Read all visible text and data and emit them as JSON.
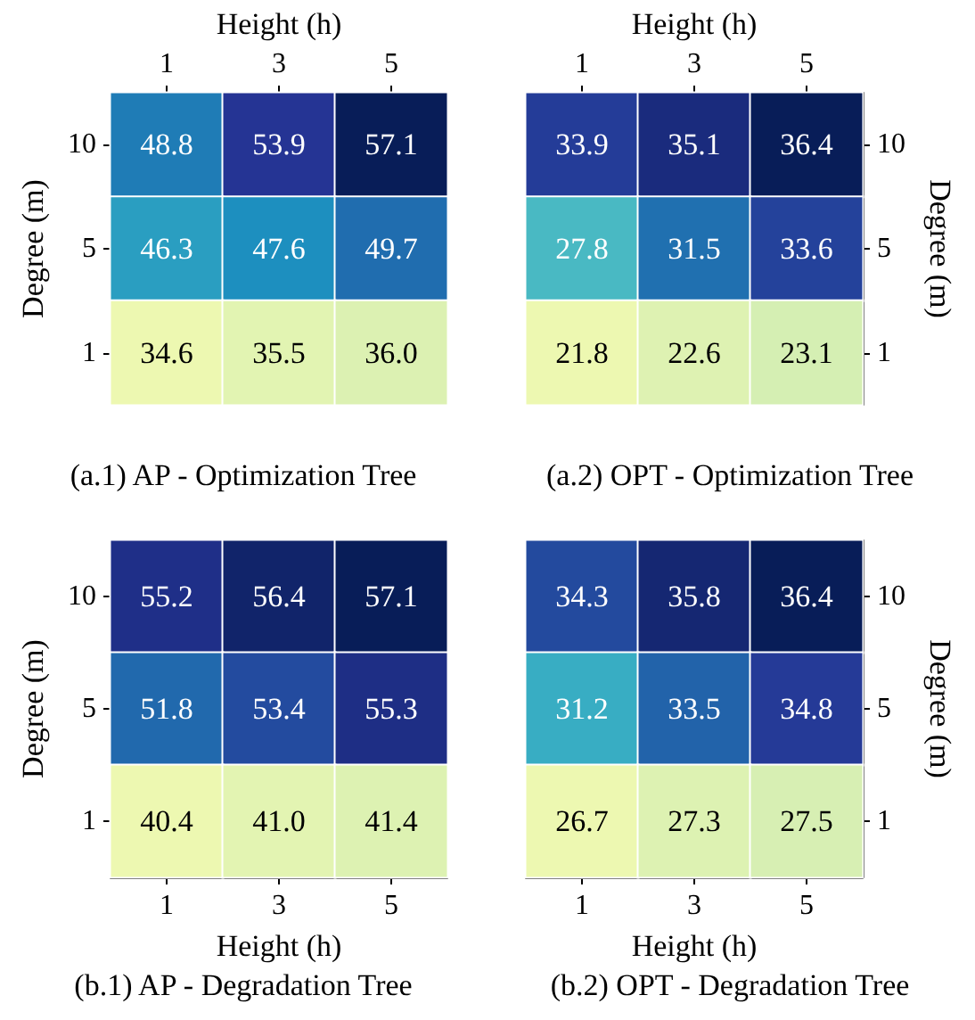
{
  "chart_data": [
    {
      "type": "heatmap",
      "title": "(a.1) AP - Optimization Tree",
      "xlabel": "Height (h)",
      "ylabel": "Degree (m)",
      "categories": [
        "1",
        "3",
        "5"
      ],
      "y_categories": [
        "10",
        "5",
        "1"
      ],
      "cells": [
        [
          48.8,
          53.9,
          57.1
        ],
        [
          46.3,
          47.6,
          49.7
        ],
        [
          34.6,
          35.5,
          36.0
        ]
      ],
      "cell_labels": [
        [
          "48.8",
          "53.9",
          "57.1"
        ],
        [
          "46.3",
          "47.6",
          "49.7"
        ],
        [
          "34.6",
          "35.5",
          "36.0"
        ]
      ]
    },
    {
      "type": "heatmap",
      "title": "(a.2) OPT - Optimization Tree",
      "xlabel": "Height (h)",
      "ylabel": "Degree (m)",
      "categories": [
        "1",
        "3",
        "5"
      ],
      "y_categories": [
        "10",
        "5",
        "1"
      ],
      "cells": [
        [
          33.9,
          35.1,
          36.4
        ],
        [
          27.8,
          31.5,
          33.6
        ],
        [
          21.8,
          22.6,
          23.1
        ]
      ],
      "cell_labels": [
        [
          "33.9",
          "35.1",
          "36.4"
        ],
        [
          "27.8",
          "31.5",
          "33.6"
        ],
        [
          "21.8",
          "22.6",
          "23.1"
        ]
      ]
    },
    {
      "type": "heatmap",
      "title": "(b.1) AP - Degradation Tree",
      "xlabel": "Height (h)",
      "ylabel": "Degree (m)",
      "categories": [
        "1",
        "3",
        "5"
      ],
      "y_categories": [
        "10",
        "5",
        "1"
      ],
      "cells": [
        [
          55.2,
          56.4,
          57.1
        ],
        [
          51.8,
          53.4,
          55.3
        ],
        [
          40.4,
          41.0,
          41.4
        ]
      ],
      "cell_labels": [
        [
          "55.2",
          "56.4",
          "57.1"
        ],
        [
          "51.8",
          "53.4",
          "55.3"
        ],
        [
          "40.4",
          "41.0",
          "41.4"
        ]
      ]
    },
    {
      "type": "heatmap",
      "title": "(b.2) OPT - Degradation Tree",
      "xlabel": "Height (h)",
      "ylabel": "Degree (m)",
      "categories": [
        "1",
        "3",
        "5"
      ],
      "y_categories": [
        "10",
        "5",
        "1"
      ],
      "cells": [
        [
          34.3,
          35.8,
          36.4
        ],
        [
          31.2,
          33.5,
          34.8
        ],
        [
          26.7,
          27.3,
          27.5
        ]
      ],
      "cell_labels": [
        [
          "34.3",
          "35.8",
          "36.4"
        ],
        [
          "31.2",
          "33.5",
          "34.8"
        ],
        [
          "26.7",
          "27.3",
          "27.5"
        ]
      ]
    }
  ]
}
